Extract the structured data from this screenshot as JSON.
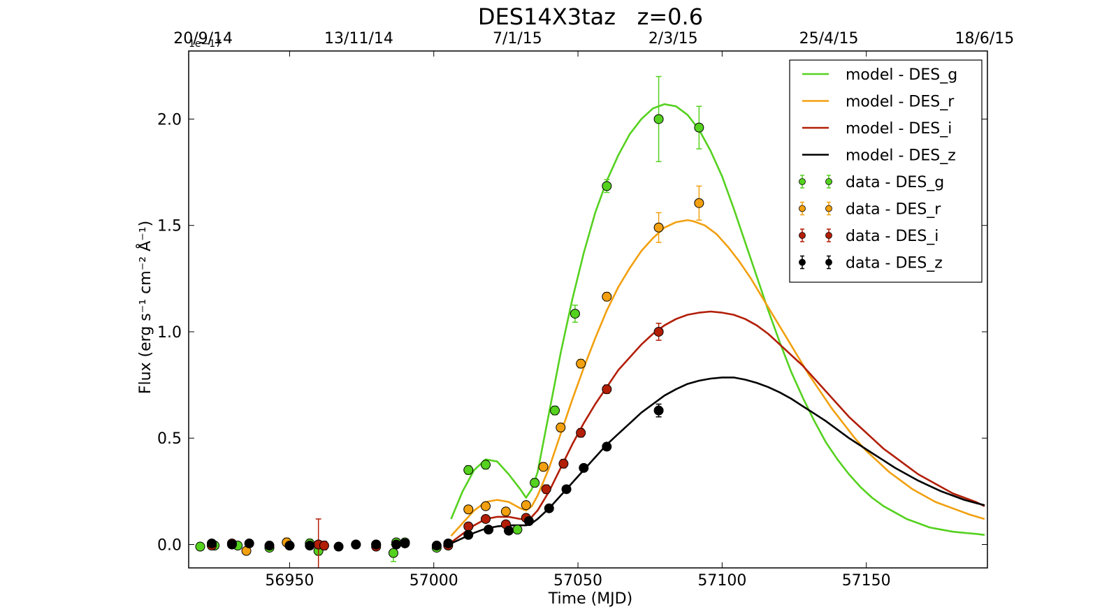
{
  "chart_data": {
    "type": "scatter",
    "title": "DES14X3taz   z=0.6",
    "xlabel": "Time (MJD)",
    "ylabel": "Flux (erg s⁻¹ cm⁻² Å⁻¹)",
    "y_offset_text": "1e−17",
    "xlim": [
      56915,
      57192
    ],
    "ylim": [
      -0.11,
      2.32
    ],
    "x_ticks": [
      56950,
      57000,
      57050,
      57100,
      57150
    ],
    "x_tick_labels": [
      "56950",
      "57000",
      "57050",
      "57100",
      "57150"
    ],
    "y_ticks": [
      0.0,
      0.5,
      1.0,
      1.5,
      2.0
    ],
    "y_tick_labels": [
      "0.0",
      "0.5",
      "1.0",
      "1.5",
      "2.0"
    ],
    "top_axis_ticks": [
      {
        "mjd": 56920,
        "label": "20/9/14"
      },
      {
        "mjd": 56974,
        "label": "13/11/14"
      },
      {
        "mjd": 57029,
        "label": "7/1/15"
      },
      {
        "mjd": 57083,
        "label": "2/3/15"
      },
      {
        "mjd": 57137,
        "label": "25/4/15"
      },
      {
        "mjd": 57191,
        "label": "18/6/15"
      }
    ],
    "legend_position": "upper right",
    "colors": {
      "DES_g": "#55d11f",
      "DES_r": "#f2a00f",
      "DES_i": "#b21e06",
      "DES_z": "#000000"
    },
    "series": [
      {
        "name": "model - DES_g",
        "kind": "line",
        "color": "#55d11f",
        "x": [
          57006,
          57010,
          57014,
          57018,
          57022,
          57026,
          57030,
          57032,
          57034,
          57036,
          57038,
          57040,
          57044,
          57048,
          57052,
          57056,
          57060,
          57064,
          57068,
          57072,
          57076,
          57080,
          57084,
          57088,
          57092,
          57096,
          57100,
          57104,
          57108,
          57112,
          57116,
          57120,
          57124,
          57128,
          57132,
          57136,
          57140,
          57144,
          57148,
          57152,
          57156,
          57160,
          57164,
          57168,
          57172,
          57176,
          57180,
          57184,
          57188,
          57191
        ],
        "y": [
          0.12,
          0.25,
          0.35,
          0.4,
          0.39,
          0.33,
          0.26,
          0.22,
          0.26,
          0.34,
          0.48,
          0.62,
          0.9,
          1.15,
          1.37,
          1.56,
          1.71,
          1.83,
          1.93,
          2.0,
          2.05,
          2.07,
          2.06,
          2.02,
          1.95,
          1.85,
          1.73,
          1.58,
          1.42,
          1.26,
          1.1,
          0.95,
          0.81,
          0.69,
          0.58,
          0.48,
          0.4,
          0.33,
          0.27,
          0.22,
          0.18,
          0.15,
          0.12,
          0.1,
          0.08,
          0.07,
          0.06,
          0.055,
          0.05,
          0.045
        ]
      },
      {
        "name": "model - DES_r",
        "kind": "line",
        "color": "#f2a00f",
        "x": [
          57006,
          57010,
          57014,
          57018,
          57022,
          57026,
          57030,
          57032,
          57034,
          57036,
          57040,
          57044,
          57048,
          57052,
          57056,
          57060,
          57064,
          57068,
          57072,
          57076,
          57080,
          57084,
          57088,
          57090,
          57094,
          57098,
          57102,
          57106,
          57110,
          57114,
          57118,
          57122,
          57126,
          57130,
          57134,
          57138,
          57142,
          57146,
          57150,
          57154,
          57158,
          57162,
          57166,
          57170,
          57174,
          57178,
          57182,
          57186,
          57191
        ],
        "y": [
          0.04,
          0.1,
          0.16,
          0.2,
          0.21,
          0.2,
          0.17,
          0.16,
          0.18,
          0.23,
          0.36,
          0.52,
          0.68,
          0.83,
          0.97,
          1.1,
          1.21,
          1.3,
          1.38,
          1.44,
          1.49,
          1.515,
          1.525,
          1.52,
          1.5,
          1.46,
          1.4,
          1.33,
          1.25,
          1.16,
          1.07,
          0.98,
          0.89,
          0.8,
          0.72,
          0.64,
          0.57,
          0.5,
          0.44,
          0.39,
          0.34,
          0.3,
          0.26,
          0.23,
          0.2,
          0.18,
          0.16,
          0.14,
          0.12
        ]
      },
      {
        "name": "model - DES_i",
        "kind": "line",
        "color": "#b21e06",
        "x": [
          57006,
          57010,
          57014,
          57018,
          57022,
          57026,
          57030,
          57032,
          57034,
          57036,
          57040,
          57044,
          57048,
          57052,
          57056,
          57060,
          57064,
          57068,
          57072,
          57076,
          57080,
          57084,
          57088,
          57092,
          57096,
          57100,
          57104,
          57108,
          57112,
          57116,
          57120,
          57124,
          57128,
          57132,
          57136,
          57140,
          57144,
          57148,
          57152,
          57156,
          57160,
          57164,
          57168,
          57172,
          57176,
          57180,
          57184,
          57188,
          57191
        ],
        "y": [
          0.01,
          0.05,
          0.09,
          0.12,
          0.13,
          0.13,
          0.12,
          0.12,
          0.13,
          0.16,
          0.25,
          0.36,
          0.47,
          0.57,
          0.66,
          0.74,
          0.82,
          0.88,
          0.94,
          0.99,
          1.03,
          1.06,
          1.08,
          1.09,
          1.095,
          1.09,
          1.08,
          1.06,
          1.03,
          0.99,
          0.94,
          0.89,
          0.84,
          0.78,
          0.72,
          0.66,
          0.6,
          0.55,
          0.5,
          0.45,
          0.41,
          0.37,
          0.33,
          0.3,
          0.27,
          0.24,
          0.22,
          0.2,
          0.18
        ]
      },
      {
        "name": "model - DES_z",
        "kind": "line",
        "color": "#000000",
        "x": [
          57006,
          57010,
          57014,
          57018,
          57022,
          57026,
          57030,
          57032,
          57034,
          57036,
          57040,
          57044,
          57048,
          57052,
          57056,
          57060,
          57064,
          57068,
          57072,
          57076,
          57080,
          57084,
          57088,
          57092,
          57096,
          57100,
          57104,
          57108,
          57112,
          57116,
          57120,
          57124,
          57128,
          57132,
          57136,
          57140,
          57144,
          57148,
          57152,
          57156,
          57160,
          57164,
          57168,
          57172,
          57176,
          57180,
          57184,
          57188,
          57191
        ],
        "y": [
          0.005,
          0.03,
          0.055,
          0.075,
          0.085,
          0.09,
          0.09,
          0.09,
          0.1,
          0.12,
          0.17,
          0.23,
          0.29,
          0.35,
          0.41,
          0.47,
          0.52,
          0.57,
          0.62,
          0.66,
          0.7,
          0.73,
          0.755,
          0.77,
          0.78,
          0.785,
          0.785,
          0.775,
          0.76,
          0.74,
          0.715,
          0.685,
          0.65,
          0.615,
          0.58,
          0.54,
          0.5,
          0.465,
          0.43,
          0.395,
          0.36,
          0.33,
          0.3,
          0.275,
          0.25,
          0.23,
          0.21,
          0.195,
          0.185
        ]
      },
      {
        "name": "data - DES_g",
        "kind": "points",
        "color": "#55d11f",
        "x": [
          56919,
          56924,
          56932,
          56943,
          56950,
          56957,
          56960,
          56973,
          56980,
          56986,
          56987,
          56990,
          57001,
          57012,
          57018,
          57029,
          57035,
          57042,
          57049,
          57060,
          57078,
          57092
        ],
        "y": [
          -0.01,
          -0.005,
          -0.005,
          -0.015,
          -0.005,
          0.005,
          -0.03,
          0.0,
          0.0,
          -0.04,
          0.01,
          0.01,
          -0.015,
          0.35,
          0.375,
          0.07,
          0.29,
          0.63,
          1.085,
          1.685,
          2.0,
          1.96
        ],
        "err": [
          0.01,
          0.01,
          0.01,
          0.015,
          0.015,
          0.02,
          0.02,
          0.015,
          0.015,
          0.04,
          0.015,
          0.015,
          0.015,
          0.02,
          0.02,
          0.015,
          0.02,
          0.02,
          0.04,
          0.03,
          0.2,
          0.1
        ]
      },
      {
        "name": "data - DES_r",
        "kind": "points",
        "color": "#f2a00f",
        "x": [
          56935,
          56949,
          57012,
          57018,
          57025,
          57032,
          57038,
          57044,
          57051,
          57060,
          57078,
          57092
        ],
        "y": [
          -0.03,
          0.01,
          0.165,
          0.18,
          0.155,
          0.185,
          0.365,
          0.55,
          0.85,
          1.165,
          1.49,
          1.605
        ],
        "err": [
          0.015,
          0.02,
          0.015,
          0.015,
          0.015,
          0.015,
          0.02,
          0.02,
          0.02,
          0.02,
          0.07,
          0.08
        ]
      },
      {
        "name": "data - DES_i",
        "kind": "points",
        "color": "#b21e06",
        "x": [
          56923,
          56930,
          56960,
          56962,
          56980,
          57005,
          57012,
          57018,
          57025,
          57032,
          57039,
          57045,
          57051,
          57060,
          57078
        ],
        "y": [
          -0.005,
          0.005,
          0.0,
          -0.005,
          -0.01,
          -0.005,
          0.085,
          0.12,
          0.095,
          0.125,
          0.26,
          0.38,
          0.525,
          0.73,
          1.0
        ],
        "err": [
          0.01,
          0.01,
          0.12,
          0.02,
          0.015,
          0.01,
          0.015,
          0.015,
          0.015,
          0.015,
          0.02,
          0.02,
          0.02,
          0.02,
          0.04
        ]
      },
      {
        "name": "data - DES_z",
        "kind": "points",
        "color": "#000000",
        "x": [
          56923,
          56930,
          56936,
          56943,
          56950,
          56957,
          56967,
          56973,
          56980,
          56987,
          56990,
          57001,
          57005,
          57012,
          57019,
          57026,
          57033,
          57040,
          57046,
          57052,
          57060,
          57078
        ],
        "y": [
          0.005,
          0.0,
          0.005,
          -0.005,
          -0.005,
          -0.005,
          -0.01,
          0.0,
          0.0,
          0.0,
          0.005,
          -0.005,
          0.005,
          0.045,
          0.07,
          0.065,
          0.11,
          0.17,
          0.26,
          0.36,
          0.46,
          0.63
        ],
        "err": [
          0.01,
          0.01,
          0.01,
          0.01,
          0.01,
          0.01,
          0.01,
          0.01,
          0.01,
          0.01,
          0.01,
          0.01,
          0.01,
          0.012,
          0.012,
          0.012,
          0.012,
          0.015,
          0.015,
          0.015,
          0.015,
          0.03
        ]
      }
    ]
  }
}
